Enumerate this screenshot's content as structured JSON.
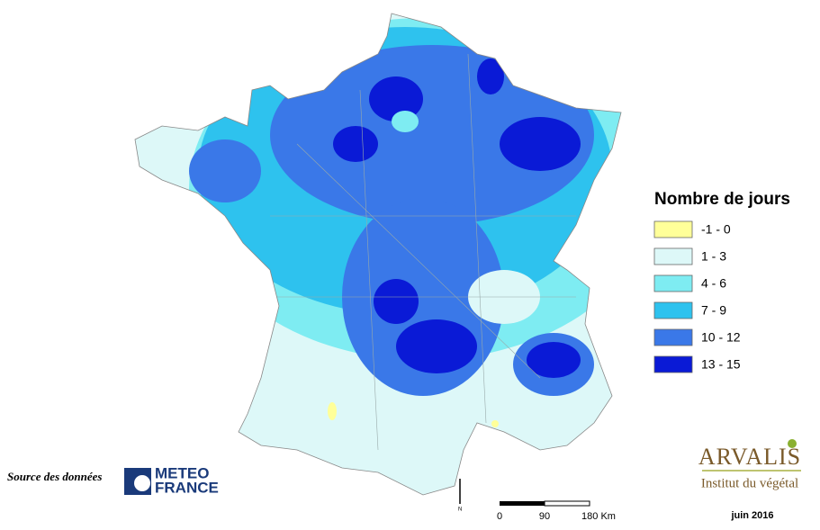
{
  "legend": {
    "title": "Nombre de jours",
    "items": [
      {
        "label": "-1 - 0",
        "color": "#ffff99"
      },
      {
        "label": "1 - 3",
        "color": "#ddf8f8"
      },
      {
        "label": "4 - 6",
        "color": "#7eecf2"
      },
      {
        "label": "7 - 9",
        "color": "#2ec2ee"
      },
      {
        "label": "10 - 12",
        "color": "#3a78e8"
      },
      {
        "label": "13 - 15",
        "color": "#0a1ad6"
      }
    ]
  },
  "source": {
    "label": "Source des données",
    "logo": [
      "METEO",
      "FRANCE"
    ]
  },
  "north": "N",
  "scale": {
    "labels": [
      "0",
      "90",
      "180 Km"
    ]
  },
  "branding": {
    "name": "ARVALIS",
    "tagline": "Institut du végétal"
  },
  "date": "juin 2016"
}
